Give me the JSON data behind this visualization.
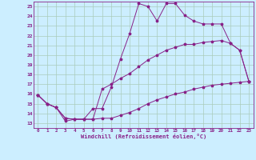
{
  "xlabel": "Windchill (Refroidissement éolien,°C)",
  "bg_color": "#cceeff",
  "grid_color": "#aaccbb",
  "line_color": "#882288",
  "xlim": [
    -0.5,
    23.5
  ],
  "ylim": [
    12.5,
    25.5
  ],
  "xticks": [
    0,
    1,
    2,
    3,
    4,
    5,
    6,
    7,
    8,
    9,
    10,
    11,
    12,
    13,
    14,
    15,
    16,
    17,
    18,
    19,
    20,
    21,
    22,
    23
  ],
  "yticks": [
    13,
    14,
    15,
    16,
    17,
    18,
    19,
    20,
    21,
    22,
    23,
    24,
    25
  ],
  "line1_x": [
    0,
    1,
    2,
    3,
    4,
    5,
    6,
    7,
    8,
    9,
    10,
    11,
    12,
    13,
    14,
    15,
    16,
    17,
    18,
    19,
    20,
    21,
    22,
    23
  ],
  "line1_y": [
    15.9,
    15.0,
    14.6,
    13.2,
    13.4,
    13.4,
    14.5,
    14.5,
    16.7,
    19.6,
    22.2,
    25.3,
    25.0,
    23.5,
    25.3,
    25.3,
    24.1,
    23.5,
    23.2,
    23.2,
    23.2,
    21.2,
    20.5,
    17.3
  ],
  "line2_x": [
    0,
    1,
    2,
    3,
    4,
    5,
    6,
    7,
    8,
    9,
    10,
    11,
    12,
    13,
    14,
    15,
    16,
    17,
    18,
    19,
    20,
    21,
    22,
    23
  ],
  "line2_y": [
    15.9,
    15.0,
    14.6,
    13.5,
    13.4,
    13.4,
    13.4,
    16.5,
    17.0,
    17.6,
    18.1,
    18.8,
    19.5,
    20.0,
    20.5,
    20.8,
    21.1,
    21.1,
    21.3,
    21.4,
    21.5,
    21.2,
    20.5,
    17.3
  ],
  "line3_x": [
    0,
    1,
    2,
    3,
    4,
    5,
    6,
    7,
    8,
    9,
    10,
    11,
    12,
    13,
    14,
    15,
    16,
    17,
    18,
    19,
    20,
    21,
    22,
    23
  ],
  "line3_y": [
    15.9,
    15.0,
    14.6,
    13.5,
    13.4,
    13.4,
    13.4,
    13.5,
    13.5,
    13.8,
    14.1,
    14.5,
    15.0,
    15.4,
    15.7,
    16.0,
    16.2,
    16.5,
    16.7,
    16.9,
    17.0,
    17.1,
    17.2,
    17.3
  ]
}
